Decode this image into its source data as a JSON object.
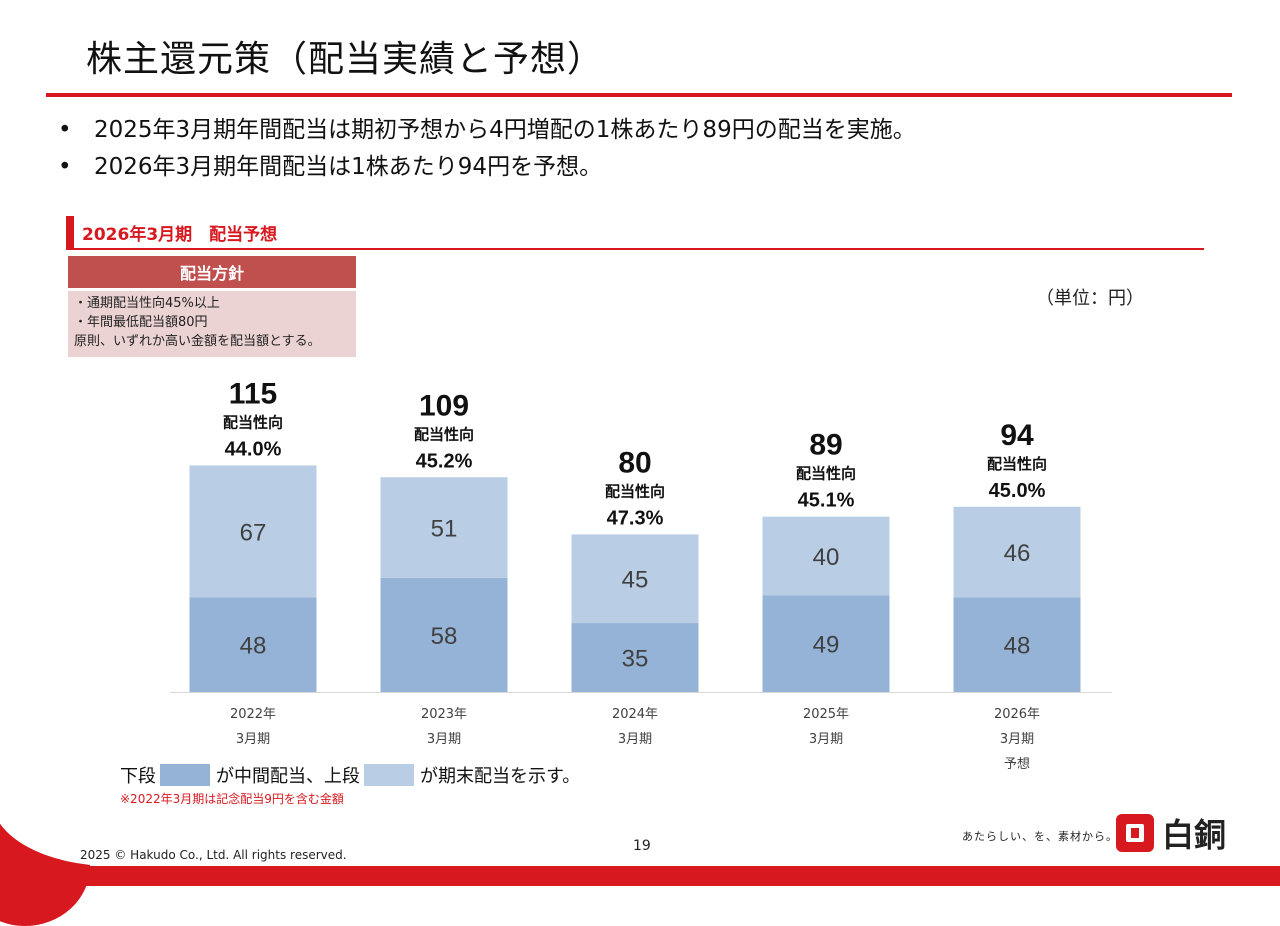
{
  "header": {
    "title": "株主還元策（配当実績と予想）",
    "bullets": [
      "2025年3月期年間配当は期初予想から4円増配の1株あたり89円の配当を実施。",
      "2026年3月期年間配当は1株あたり94円を予想。"
    ],
    "bullet_mark": "•"
  },
  "section": {
    "label": "2026年3月期　配当予想"
  },
  "policy": {
    "heading": "配当方針",
    "lines": [
      "・通期配当性向45%以上",
      "・年間最低配当額80円",
      "原則、いずれか高い金額を配当額とする。"
    ]
  },
  "unit_label": "（単位：円）",
  "chart_data": {
    "type": "bar",
    "stacked": true,
    "categories": [
      [
        "2022年",
        "3月期"
      ],
      [
        "2023年",
        "3月期"
      ],
      [
        "2024年",
        "3月期"
      ],
      [
        "2025年",
        "3月期"
      ],
      [
        "2026年",
        "3月期",
        "予想"
      ]
    ],
    "series": [
      {
        "values": [
          48,
          58,
          35,
          49,
          48
        ],
        "color": "#95b3d7"
      },
      {
        "values": [
          67,
          51,
          45,
          40,
          46
        ],
        "color": "#b9cde5"
      }
    ],
    "totals": [
      115,
      109,
      80,
      89,
      94
    ],
    "payout_label": "配当性向",
    "payout_ratios": [
      "44.0%",
      "45.2%",
      "47.3%",
      "45.1%",
      "45.0%"
    ],
    "ylim": [
      0,
      130
    ],
    "grid": false
  },
  "legend": {
    "lower_label": "下段",
    "middle_text": "が中間配当、上段",
    "upper_text": "が期末配当を示す。"
  },
  "note": "※2022年3月期は記念配当9円を含む金額",
  "footer": {
    "copyright": "2025 © Hakudo Co., Ltd. All rights reserved.",
    "page_number": "19",
    "tagline": "あたらしい、を、素材から。",
    "logo_text": "白銅"
  },
  "colors": {
    "accent": "#d7191f",
    "interim": "#95b3d7",
    "year_end": "#b9cde5"
  }
}
